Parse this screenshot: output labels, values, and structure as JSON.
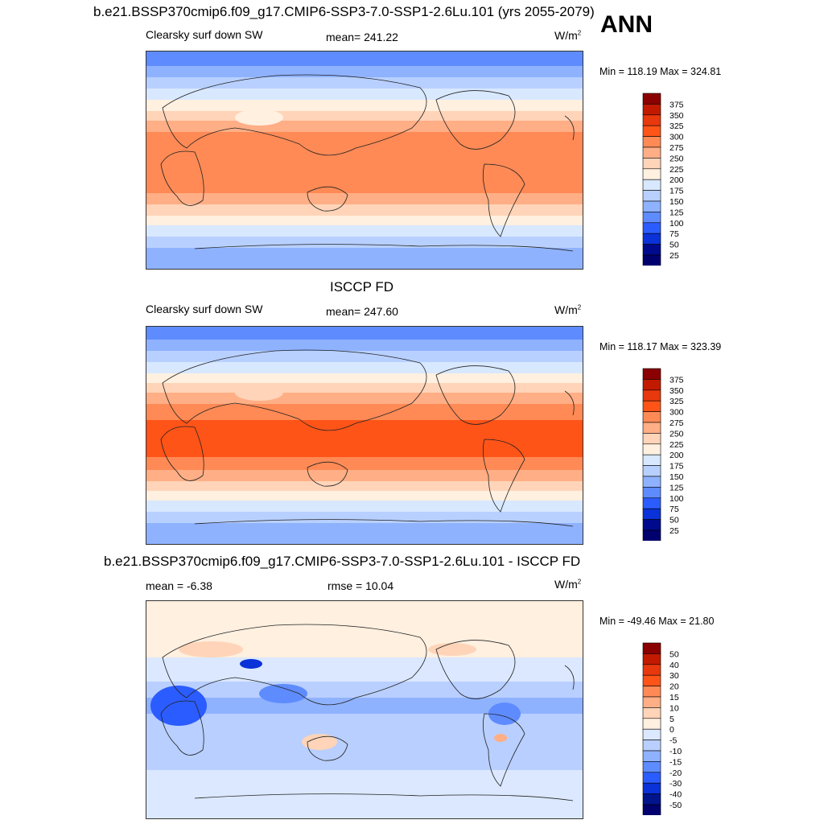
{
  "season": "ANN",
  "panels": [
    {
      "title": "b.e21.BSSP370cmip6.f09_g17.CMIP6-SSP3-7.0-SSP1-2.6Lu.101 (yrs 2055-2079)",
      "left_text": "Clearsky surf down SW",
      "center_text": "mean= 241.22",
      "units": "W/m",
      "units_exp": "2",
      "minmax": "Min = 118.19 Max = 324.81",
      "map_icon": "world-map-field",
      "colorbar_levels": [
        "375",
        "350",
        "325",
        "300",
        "275",
        "250",
        "225",
        "200",
        "175",
        "150",
        "125",
        "100",
        "75",
        "50",
        "25"
      ]
    },
    {
      "title": "ISCCP FD",
      "left_text": "Clearsky surf down SW",
      "center_text": "mean= 247.60",
      "units": "W/m",
      "units_exp": "2",
      "minmax": "Min = 118.17 Max = 323.39",
      "map_icon": "world-map-field",
      "colorbar_levels": [
        "375",
        "350",
        "325",
        "300",
        "275",
        "250",
        "225",
        "200",
        "175",
        "150",
        "125",
        "100",
        "75",
        "50",
        "25"
      ]
    },
    {
      "title": "b.e21.BSSP370cmip6.f09_g17.CMIP6-SSP3-7.0-SSP1-2.6Lu.101 - ISCCP FD",
      "left_text": "mean =  -6.38",
      "center_text": "rmse =  10.04",
      "units": "W/m",
      "units_exp": "2",
      "minmax": "Min = -49.46 Max =  21.80",
      "map_icon": "world-map-difference",
      "colorbar_levels": [
        "50",
        "40",
        "30",
        "20",
        "15",
        "10",
        "5",
        "0",
        "-5",
        "-10",
        "-15",
        "-20",
        "-30",
        "-40",
        "-50"
      ]
    }
  ],
  "colors": {
    "abs_scale": [
      "#8b0000",
      "#c21a00",
      "#e8380d",
      "#ff5418",
      "#ff8a55",
      "#ffae85",
      "#ffd4b8",
      "#fff0e0",
      "#d8e8ff",
      "#b8d0ff",
      "#8fb2ff",
      "#5e8cff",
      "#2b5cff",
      "#0a32d8",
      "#000a8c",
      "#00006e"
    ],
    "diff_scale": [
      "#8b0000",
      "#c21a00",
      "#e8380d",
      "#ff5418",
      "#ff8a55",
      "#ffae85",
      "#ffd4b8",
      "#fff0e0",
      "#dbe8ff",
      "#b9cfff",
      "#8fb2ff",
      "#5e8cff",
      "#2b5cff",
      "#0a32d8",
      "#00148c",
      "#00006e"
    ]
  }
}
